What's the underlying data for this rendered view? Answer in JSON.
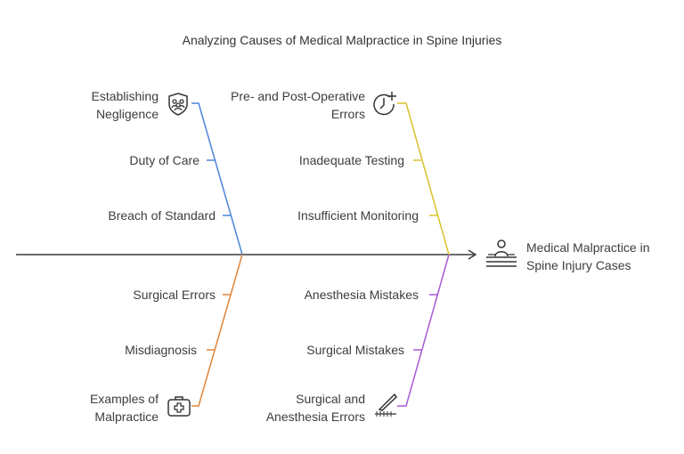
{
  "title": "Analyzing Causes of Medical Malpractice in Spine Injuries",
  "effect": {
    "line1": "Medical Malpractice in",
    "line2": "Spine Injury Cases",
    "icon": "patient-bed-icon"
  },
  "branches": [
    {
      "color": "#4a86d8",
      "head": {
        "line1": "Establishing",
        "line2": "Negligence",
        "icon": "people-shield-icon"
      },
      "causes": [
        "Duty of Care",
        "Breach of Standard"
      ]
    },
    {
      "color": "#d8c22a",
      "head": {
        "line1": "Pre- and Post-Operative",
        "line2": "Errors",
        "icon": "clock-plus-icon"
      },
      "causes": [
        "Inadequate Testing",
        "Insufficient Monitoring"
      ]
    },
    {
      "color": "#e0853a",
      "head": {
        "line1": "Examples of",
        "line2": "Malpractice",
        "icon": "medical-kit-icon"
      },
      "causes": [
        "Surgical Errors",
        "Misdiagnosis"
      ]
    },
    {
      "color": "#a85ad8",
      "head": {
        "line1": "Surgical and",
        "line2": "Anesthesia Errors",
        "icon": "scalpel-icon"
      },
      "causes": [
        "Anesthesia Mistakes",
        "Surgical Mistakes"
      ]
    }
  ]
}
